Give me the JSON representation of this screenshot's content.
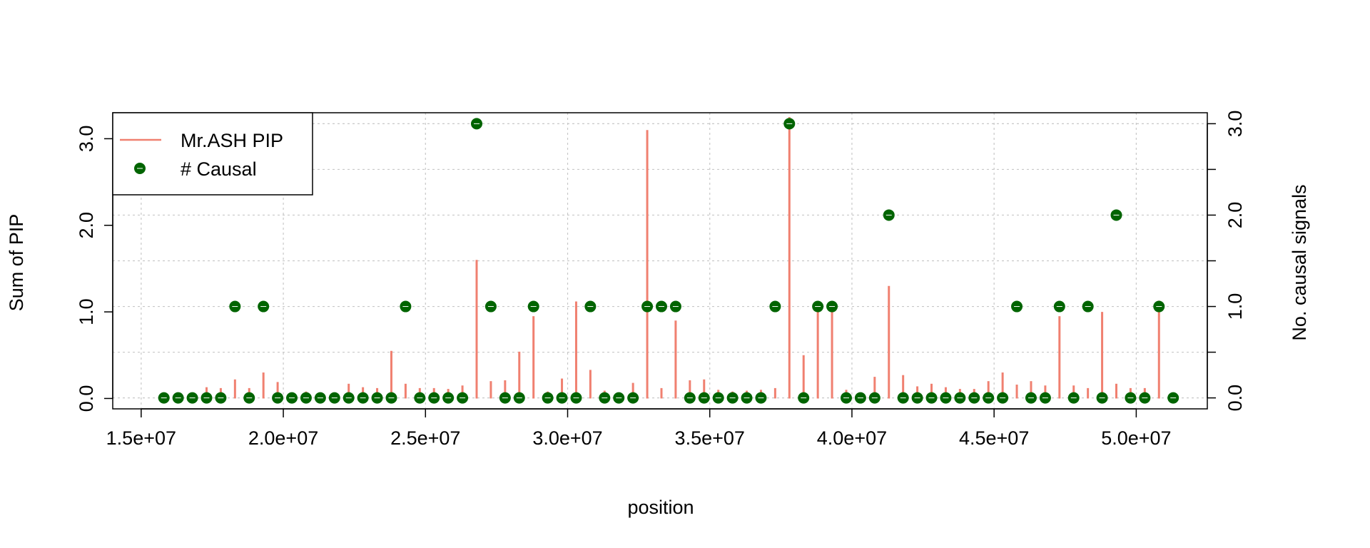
{
  "chart_data": {
    "type": "bar",
    "title": "",
    "xlabel": "position",
    "ylabel": "Sum of PIP",
    "y2label": "No. causal signals",
    "xlim": [
      14000000,
      52500000
    ],
    "ylim": [
      -0.12,
      3.3
    ],
    "y2lim": [
      -0.12,
      3.12
    ],
    "grid": true,
    "legend_position": "top-left",
    "x_ticks": [
      15000000,
      20000000,
      25000000,
      30000000,
      35000000,
      40000000,
      45000000,
      50000000
    ],
    "x_tick_labels": [
      "1.5e+07",
      "2.0e+07",
      "2.5e+07",
      "3.0e+07",
      "3.5e+07",
      "4.0e+07",
      "4.5e+07",
      "5.0e+07"
    ],
    "y_ticks": [
      0,
      1,
      2,
      3
    ],
    "y_tick_labels": [
      "0.0",
      "1.0",
      "2.0",
      "3.0"
    ],
    "y2_ticks": [
      0,
      0.5,
      1,
      1.5,
      2,
      2.5,
      3
    ],
    "y2_tick_labels": [
      "0.0",
      "",
      "1.0",
      "",
      "2.0",
      "",
      "3.0"
    ],
    "colors": {
      "pip": "#f08070",
      "causal": "#006400",
      "grid": "#c8c8c8"
    },
    "series": [
      {
        "name": "Mr.ASH PIP",
        "style": "vertical-line",
        "x": [
          15800000,
          16300000,
          16800000,
          17300000,
          17800000,
          18300000,
          18800000,
          19300000,
          19800000,
          20300000,
          20800000,
          21300000,
          21800000,
          22300000,
          22800000,
          23300000,
          23800000,
          24300000,
          24800000,
          25300000,
          25800000,
          26300000,
          26800000,
          27300000,
          27800000,
          28300000,
          28800000,
          29300000,
          29800000,
          30300000,
          30800000,
          31300000,
          31800000,
          32300000,
          32800000,
          33300000,
          33800000,
          34300000,
          34800000,
          35300000,
          35800000,
          36300000,
          36800000,
          37300000,
          37800000,
          38300000,
          38800000,
          39300000,
          39800000,
          40300000,
          40800000,
          41300000,
          41800000,
          42300000,
          42800000,
          43300000,
          43800000,
          44300000,
          44800000,
          45300000,
          45800000,
          46300000,
          46800000,
          47300000,
          47800000,
          48300000,
          48800000,
          49300000,
          49800000,
          50300000,
          50800000,
          51300000
        ],
        "values": [
          0.01,
          0.02,
          0.03,
          0.13,
          0.12,
          0.22,
          0.12,
          0.3,
          0.19,
          0.02,
          0.08,
          0.04,
          0.06,
          0.17,
          0.13,
          0.12,
          0.55,
          0.17,
          0.12,
          0.12,
          0.11,
          0.15,
          1.6,
          0.2,
          0.21,
          0.54,
          0.95,
          0.08,
          0.23,
          1.12,
          0.33,
          0.09,
          0.06,
          0.18,
          3.1,
          0.12,
          0.9,
          0.21,
          0.22,
          0.1,
          0.08,
          0.09,
          0.1,
          0.12,
          3.25,
          0.5,
          1.12,
          1.08,
          0.1,
          0.04,
          0.25,
          1.3,
          0.27,
          0.14,
          0.17,
          0.13,
          0.11,
          0.11,
          0.2,
          0.3,
          0.16,
          0.2,
          0.15,
          0.95,
          0.15,
          0.12,
          1.0,
          0.17,
          0.12,
          0.12,
          1.13,
          0.01
        ]
      },
      {
        "name": "# Causal",
        "style": "points",
        "axis": "right",
        "x": [
          15800000,
          16300000,
          16800000,
          17300000,
          17800000,
          18300000,
          18800000,
          19300000,
          19800000,
          20300000,
          20800000,
          21300000,
          21800000,
          22300000,
          22800000,
          23300000,
          23800000,
          24300000,
          24800000,
          25300000,
          25800000,
          26300000,
          26800000,
          27300000,
          27800000,
          28300000,
          28800000,
          29300000,
          29800000,
          30300000,
          30800000,
          31300000,
          31800000,
          32300000,
          32800000,
          33300000,
          33800000,
          34300000,
          34800000,
          35300000,
          35800000,
          36300000,
          36800000,
          37300000,
          37800000,
          38300000,
          38800000,
          39300000,
          39800000,
          40300000,
          40800000,
          41300000,
          41800000,
          42300000,
          42800000,
          43300000,
          43800000,
          44300000,
          44800000,
          45300000,
          45800000,
          46300000,
          46800000,
          47300000,
          47800000,
          48300000,
          48800000,
          49300000,
          49800000,
          50300000,
          50800000,
          51300000
        ],
        "values": [
          0,
          0,
          0,
          0,
          0,
          1,
          0,
          1,
          0,
          0,
          0,
          0,
          0,
          0,
          0,
          0,
          0,
          1,
          0,
          0,
          0,
          0,
          3,
          1,
          0,
          0,
          1,
          0,
          0,
          0,
          1,
          0,
          0,
          0,
          1,
          1,
          1,
          0,
          0,
          0,
          0,
          0,
          0,
          1,
          3,
          0,
          1,
          1,
          0,
          0,
          0,
          2,
          0,
          0,
          0,
          0,
          0,
          0,
          0,
          0,
          1,
          0,
          0,
          1,
          0,
          1,
          0,
          2,
          0,
          0,
          1,
          0
        ]
      }
    ]
  }
}
